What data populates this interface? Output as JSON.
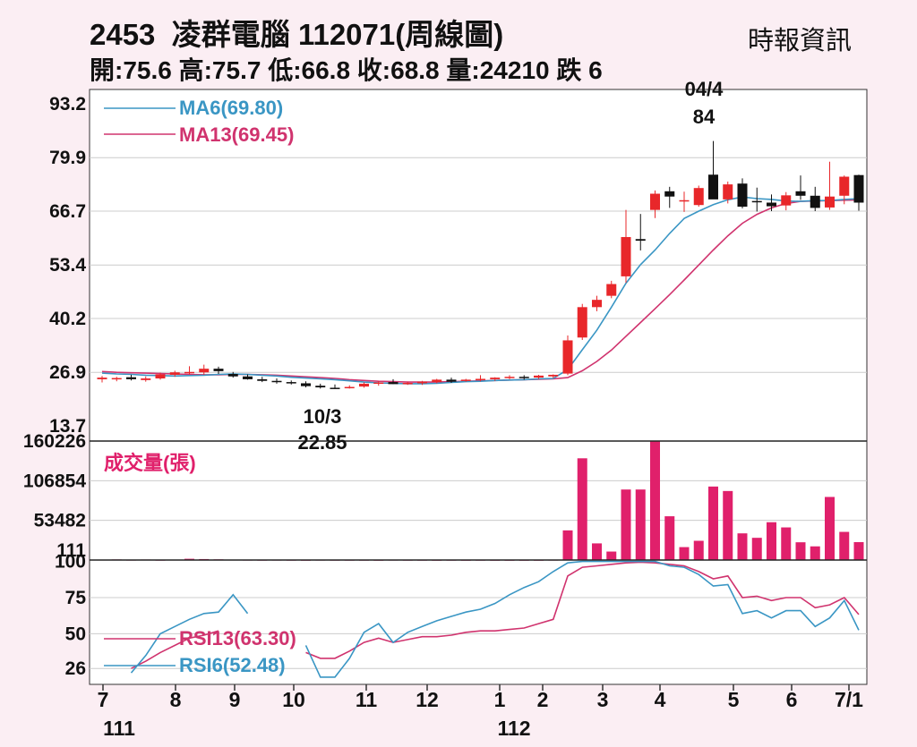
{
  "header": {
    "code": "2453",
    "name": "凌群電腦",
    "period": "112071(周線圖)",
    "source": "時報資訊",
    "stats": "開:75.6 高:75.7 低:66.8 收:68.8 量:24210 跌 6"
  },
  "colors": {
    "background": "#fbeef3",
    "plot_bg": "#ffffff",
    "up": "#e8272a",
    "down": "#111111",
    "ma6": "#3a96c4",
    "ma13": "#d0336e",
    "volume": "#e0206b",
    "grid": "#cccccc"
  },
  "chart_data": [
    {
      "type": "candlestick",
      "price_ticks": [
        "93.2",
        "79.9",
        "66.7",
        "53.4",
        "40.2",
        "26.9",
        "13.7"
      ],
      "ylim": [
        13.7,
        93.2
      ],
      "x_ticks": [
        "7",
        "8",
        "9",
        "10",
        "11",
        "12",
        "1",
        "2",
        "3",
        "4",
        "5",
        "6",
        "7/1"
      ],
      "x_year_labels": [
        "111",
        "112"
      ],
      "annotations": [
        {
          "text": "04/4",
          "value": "84"
        },
        {
          "text": "10/3",
          "value": "22.85"
        }
      ],
      "series": [
        {
          "name": "MA6(69.80)",
          "key": "ma6"
        },
        {
          "name": "MA13(69.45)",
          "key": "ma13"
        }
      ],
      "candles": [
        [
          25.2,
          26.0,
          24.4,
          25.6
        ],
        [
          25.3,
          25.8,
          24.7,
          25.5
        ],
        [
          25.7,
          26.3,
          24.9,
          25.2
        ],
        [
          25.0,
          25.9,
          24.6,
          25.4
        ],
        [
          25.4,
          26.8,
          25.1,
          26.4
        ],
        [
          26.3,
          27.3,
          25.8,
          26.9
        ],
        [
          26.9,
          28.4,
          26.4,
          27.0
        ],
        [
          26.9,
          28.8,
          26.3,
          27.8
        ],
        [
          27.8,
          28.3,
          26.5,
          27.2
        ],
        [
          26.5,
          27.0,
          25.6,
          25.9
        ],
        [
          25.9,
          26.4,
          25.1,
          25.2
        ],
        [
          25.2,
          25.8,
          24.5,
          24.8
        ],
        [
          24.8,
          25.4,
          24.1,
          24.5
        ],
        [
          24.5,
          24.9,
          23.9,
          24.2
        ],
        [
          24.2,
          24.7,
          23.2,
          23.5
        ],
        [
          23.6,
          24.1,
          22.9,
          23.2
        ],
        [
          23.1,
          23.9,
          22.85,
          22.9
        ],
        [
          23.0,
          23.7,
          22.9,
          23.3
        ],
        [
          23.4,
          24.4,
          23.1,
          24.1
        ],
        [
          24.1,
          24.7,
          23.6,
          24.4
        ],
        [
          24.5,
          25.2,
          24.0,
          24.0
        ],
        [
          24.1,
          24.6,
          23.8,
          24.3
        ],
        [
          24.2,
          24.8,
          23.8,
          24.6
        ],
        [
          24.5,
          25.3,
          24.2,
          25.1
        ],
        [
          25.1,
          25.6,
          24.3,
          24.6
        ],
        [
          24.8,
          25.3,
          24.6,
          25.1
        ],
        [
          25.1,
          26.2,
          24.7,
          25.3
        ],
        [
          25.2,
          25.7,
          24.8,
          25.6
        ],
        [
          25.5,
          26.2,
          25.2,
          25.8
        ],
        [
          25.8,
          26.2,
          25.1,
          25.6
        ],
        [
          25.6,
          26.3,
          25.3,
          26.1
        ],
        [
          25.9,
          26.4,
          25.5,
          26.3
        ],
        [
          26.6,
          36.0,
          26.2,
          34.8
        ],
        [
          35.5,
          43.8,
          34.9,
          43.0
        ],
        [
          43.0,
          45.8,
          42.0,
          44.8
        ],
        [
          45.8,
          49.5,
          45.2,
          48.7
        ],
        [
          50.6,
          67.0,
          49.0,
          60.3
        ],
        [
          59.8,
          66.0,
          57.0,
          59.4
        ],
        [
          67.0,
          71.8,
          65.0,
          71.0
        ],
        [
          71.6,
          72.7,
          67.5,
          70.3
        ],
        [
          69.4,
          71.5,
          66.5,
          69.4
        ],
        [
          68.2,
          73.0,
          67.8,
          72.4
        ],
        [
          75.7,
          84.0,
          70.0,
          69.6
        ],
        [
          69.6,
          74.0,
          68.6,
          73.3
        ],
        [
          73.5,
          74.8,
          67.4,
          67.8
        ],
        [
          69.2,
          72.5,
          66.6,
          69.0
        ],
        [
          68.8,
          70.8,
          66.7,
          67.9
        ],
        [
          68.1,
          71.4,
          66.9,
          70.6
        ],
        [
          71.6,
          75.5,
          69.5,
          70.5
        ],
        [
          70.5,
          72.7,
          66.7,
          67.5
        ],
        [
          67.6,
          78.9,
          67.0,
          70.3
        ],
        [
          70.5,
          75.5,
          68.4,
          75.2
        ],
        [
          75.6,
          75.7,
          66.8,
          68.8
        ]
      ],
      "ma6": [
        26.7,
        26.5,
        26.4,
        26.2,
        26.1,
        26.0,
        26.1,
        26.2,
        26.4,
        26.5,
        26.4,
        26.2,
        26.0,
        25.7,
        25.5,
        25.3,
        25.1,
        24.8,
        24.5,
        24.3,
        24.2,
        24.1,
        24.1,
        24.2,
        24.4,
        24.6,
        24.7,
        24.9,
        25.0,
        25.1,
        25.3,
        25.4,
        27.6,
        32.5,
        37.3,
        43.0,
        48.9,
        53.5,
        57.1,
        61.2,
        64.9,
        66.7,
        68.3,
        69.5,
        70.2,
        69.8,
        69.6,
        69.2,
        69.1,
        69.3,
        69.3,
        69.6,
        69.8
      ],
      "ma13": [
        27.1,
        26.9,
        26.8,
        26.7,
        26.6,
        26.5,
        26.4,
        26.3,
        26.3,
        26.4,
        26.4,
        26.3,
        26.2,
        26.0,
        25.8,
        25.6,
        25.4,
        25.1,
        24.9,
        24.7,
        24.6,
        24.5,
        24.5,
        24.5,
        24.6,
        24.7,
        24.8,
        24.9,
        25.0,
        25.1,
        25.2,
        25.3,
        25.6,
        27.3,
        29.6,
        32.4,
        35.8,
        39.2,
        42.6,
        46.1,
        49.7,
        53.4,
        57.1,
        60.6,
        63.7,
        65.9,
        67.5,
        68.6,
        69.1,
        69.2,
        69.3,
        69.4,
        69.45
      ]
    },
    {
      "type": "bar",
      "title": "成交量(張)",
      "ticks": [
        "160226",
        "106854",
        "53482",
        "111"
      ],
      "ylim": [
        111,
        160226
      ],
      "values": [
        700,
        900,
        600,
        800,
        500,
        700,
        1800,
        1400,
        1000,
        700,
        600,
        500,
        600,
        500,
        400,
        600,
        500,
        500,
        500,
        400,
        600,
        500,
        500,
        400,
        500,
        400,
        500,
        400,
        400,
        400,
        400,
        600,
        40000,
        137000,
        22500,
        11500,
        95000,
        95000,
        160226,
        59000,
        17500,
        26000,
        99000,
        93000,
        36000,
        30000,
        51000,
        44000,
        24000,
        18500,
        85000,
        38000,
        24210
      ]
    },
    {
      "type": "line",
      "ticks": [
        "100",
        "75",
        "50",
        "26"
      ],
      "ylim": [
        15,
        101
      ],
      "series": [
        {
          "name": "RSI13(63.30)",
          "key": "rsi13"
        },
        {
          "name": "RSI6(52.48)",
          "key": "rsi6"
        }
      ],
      "rsi13": [
        null,
        null,
        26.0,
        31.0,
        37.0,
        42.0,
        47.0,
        49.0,
        52.0,
        null,
        null,
        null,
        null,
        null,
        37.0,
        33.0,
        33.0,
        38.0,
        44.0,
        47.0,
        44.0,
        46.0,
        48.0,
        48.0,
        49.0,
        51.0,
        52.0,
        52.0,
        53.0,
        54.0,
        57.0,
        60.0,
        90.0,
        96.0,
        97.0,
        98.0,
        99.0,
        99.5,
        99.0,
        98.0,
        97.0,
        93.0,
        88.0,
        90.0,
        75.0,
        76.0,
        73.0,
        75.0,
        75.0,
        68.0,
        70.0,
        75.0,
        63.3
      ],
      "rsi6": [
        null,
        null,
        23.0,
        35.0,
        50.0,
        55.0,
        60.0,
        64.0,
        65.0,
        77.0,
        64.0,
        null,
        null,
        null,
        42.0,
        20.0,
        20.0,
        33.0,
        51.0,
        57.0,
        44.0,
        51.0,
        55.0,
        59.0,
        62.0,
        65.0,
        67.0,
        71.0,
        77.0,
        82.0,
        86.0,
        93.0,
        99.0,
        100.0,
        100.0,
        100.0,
        100.0,
        100.0,
        100.0,
        97.0,
        96.0,
        91.0,
        83.0,
        84.0,
        64.0,
        66.0,
        61.0,
        66.0,
        66.0,
        55.0,
        61.0,
        73.0,
        52.48
      ]
    }
  ]
}
